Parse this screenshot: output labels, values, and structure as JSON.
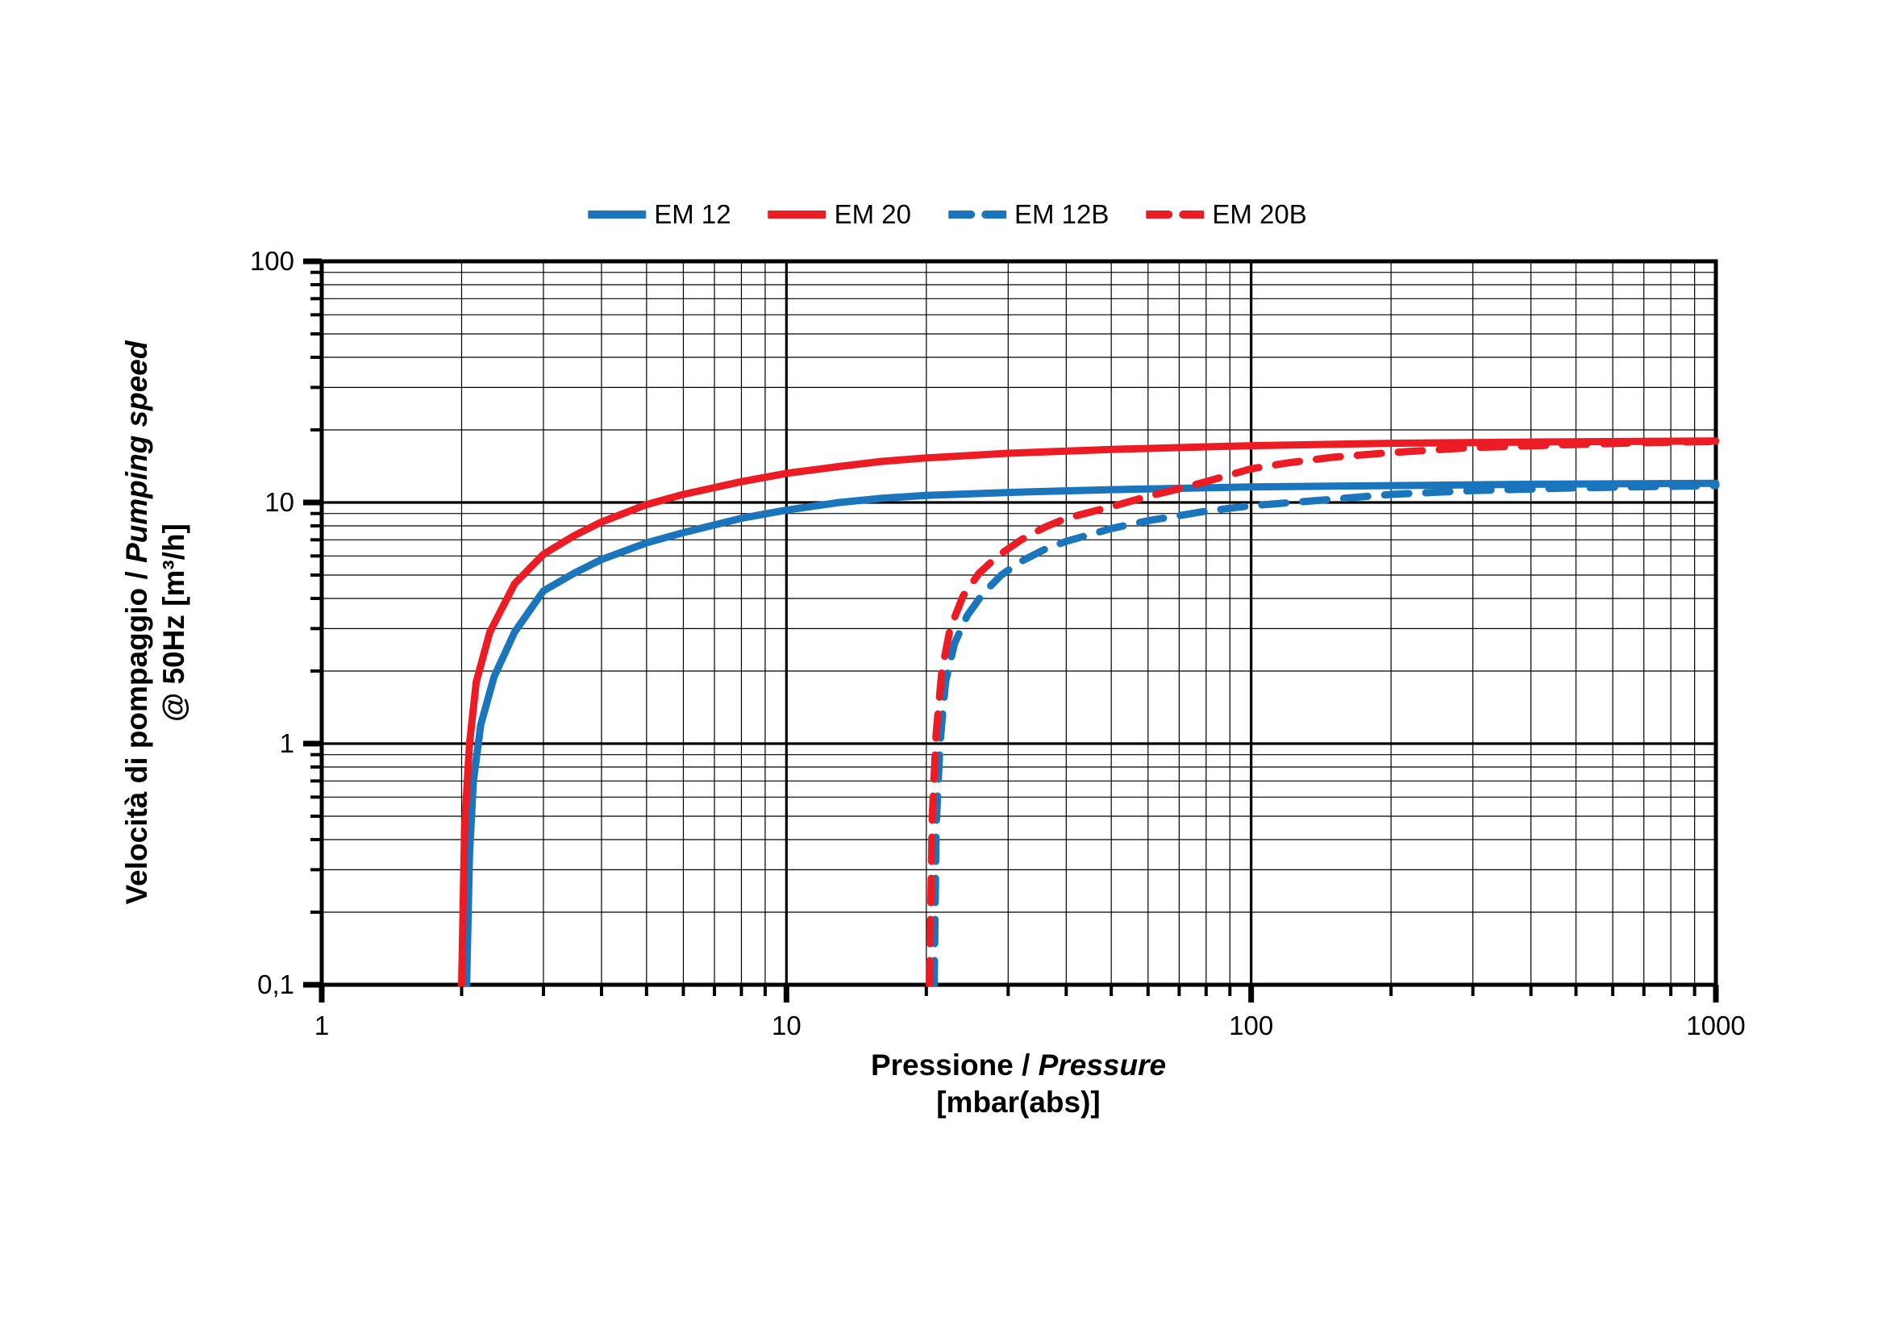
{
  "chart_data": {
    "type": "line",
    "title": "",
    "xlabel": {
      "main": "Pressione / ",
      "italic": "Pressure",
      "unit": "[mbar(abs)]"
    },
    "ylabel": {
      "main": "Velocità di pompaggio / ",
      "italic": "Pumping speed",
      "unit": "@ 50Hz [m³/h]"
    },
    "x_axis": {
      "scale": "log",
      "min": 1,
      "max": 1000,
      "ticks": [
        {
          "value": 1,
          "label": "1"
        },
        {
          "value": 10,
          "label": "10"
        },
        {
          "value": 100,
          "label": "100"
        },
        {
          "value": 1000,
          "label": "1000"
        }
      ]
    },
    "y_axis": {
      "scale": "log",
      "min": 0.1,
      "max": 100,
      "ticks": [
        {
          "value": 100,
          "label": "100"
        },
        {
          "value": 10,
          "label": "10"
        },
        {
          "value": 1,
          "label": "1"
        },
        {
          "value": 0.1,
          "label": "0,1"
        }
      ]
    },
    "grid": {
      "minor": true,
      "major": true
    },
    "legend_position": "top-center",
    "series": [
      {
        "name": "EM 12",
        "color": "#1b75bc",
        "style": "solid",
        "points": [
          [
            2.05,
            0.1
          ],
          [
            2.08,
            0.35
          ],
          [
            2.12,
            0.7
          ],
          [
            2.2,
            1.2
          ],
          [
            2.35,
            1.9
          ],
          [
            2.6,
            2.9
          ],
          [
            3.0,
            4.3
          ],
          [
            3.5,
            5.1
          ],
          [
            4.0,
            5.8
          ],
          [
            5.0,
            6.8
          ],
          [
            6.0,
            7.5
          ],
          [
            8.0,
            8.6
          ],
          [
            10,
            9.3
          ],
          [
            13,
            10.0
          ],
          [
            16,
            10.4
          ],
          [
            20,
            10.7
          ],
          [
            30,
            11.0
          ],
          [
            50,
            11.3
          ],
          [
            100,
            11.6
          ],
          [
            200,
            11.75
          ],
          [
            400,
            11.9
          ],
          [
            1000,
            12.0
          ]
        ]
      },
      {
        "name": "EM 20",
        "color": "#ec1c24",
        "style": "solid",
        "points": [
          [
            2.0,
            0.1
          ],
          [
            2.03,
            0.45
          ],
          [
            2.08,
            1.0
          ],
          [
            2.15,
            1.8
          ],
          [
            2.3,
            2.9
          ],
          [
            2.6,
            4.6
          ],
          [
            3.0,
            6.1
          ],
          [
            3.5,
            7.3
          ],
          [
            4.0,
            8.3
          ],
          [
            5.0,
            9.8
          ],
          [
            6.0,
            10.8
          ],
          [
            8.0,
            12.2
          ],
          [
            10,
            13.2
          ],
          [
            13,
            14.1
          ],
          [
            16,
            14.8
          ],
          [
            20,
            15.3
          ],
          [
            30,
            16.0
          ],
          [
            50,
            16.6
          ],
          [
            100,
            17.2
          ],
          [
            200,
            17.6
          ],
          [
            400,
            17.8
          ],
          [
            1000,
            18.0
          ]
        ]
      },
      {
        "name": "EM 12B",
        "color": "#1b75bc",
        "style": "dashed",
        "points": [
          [
            20.8,
            0.1
          ],
          [
            21.0,
            0.45
          ],
          [
            21.4,
            1.0
          ],
          [
            22,
            1.8
          ],
          [
            23,
            2.6
          ],
          [
            24.5,
            3.4
          ],
          [
            26.5,
            4.2
          ],
          [
            29,
            5.0
          ],
          [
            32,
            5.7
          ],
          [
            36,
            6.4
          ],
          [
            40,
            6.9
          ],
          [
            50,
            7.8
          ],
          [
            60,
            8.4
          ],
          [
            80,
            9.2
          ],
          [
            100,
            9.7
          ],
          [
            140,
            10.2
          ],
          [
            200,
            10.8
          ],
          [
            300,
            11.2
          ],
          [
            500,
            11.5
          ],
          [
            1000,
            11.75
          ]
        ]
      },
      {
        "name": "EM 20B",
        "color": "#ec1c24",
        "style": "dashed",
        "points": [
          [
            20.3,
            0.1
          ],
          [
            20.6,
            0.5
          ],
          [
            21.0,
            1.1
          ],
          [
            21.6,
            2.0
          ],
          [
            22.5,
            3.0
          ],
          [
            24,
            4.1
          ],
          [
            26,
            5.1
          ],
          [
            28.5,
            6.0
          ],
          [
            32,
            7.0
          ],
          [
            36,
            7.9
          ],
          [
            40,
            8.6
          ],
          [
            50,
            9.6
          ],
          [
            60,
            10.6
          ],
          [
            70,
            11.4
          ],
          [
            80,
            12.2
          ],
          [
            100,
            13.8
          ],
          [
            120,
            14.6
          ],
          [
            150,
            15.4
          ],
          [
            200,
            16.1
          ],
          [
            300,
            16.9
          ],
          [
            500,
            17.4
          ],
          [
            700,
            17.7
          ],
          [
            1000,
            17.9
          ]
        ]
      }
    ]
  },
  "style_tokens": {
    "curve_blue": "#1b75bc",
    "curve_red": "#ec1c24",
    "grid_color": "#000000",
    "background": "#ffffff"
  }
}
